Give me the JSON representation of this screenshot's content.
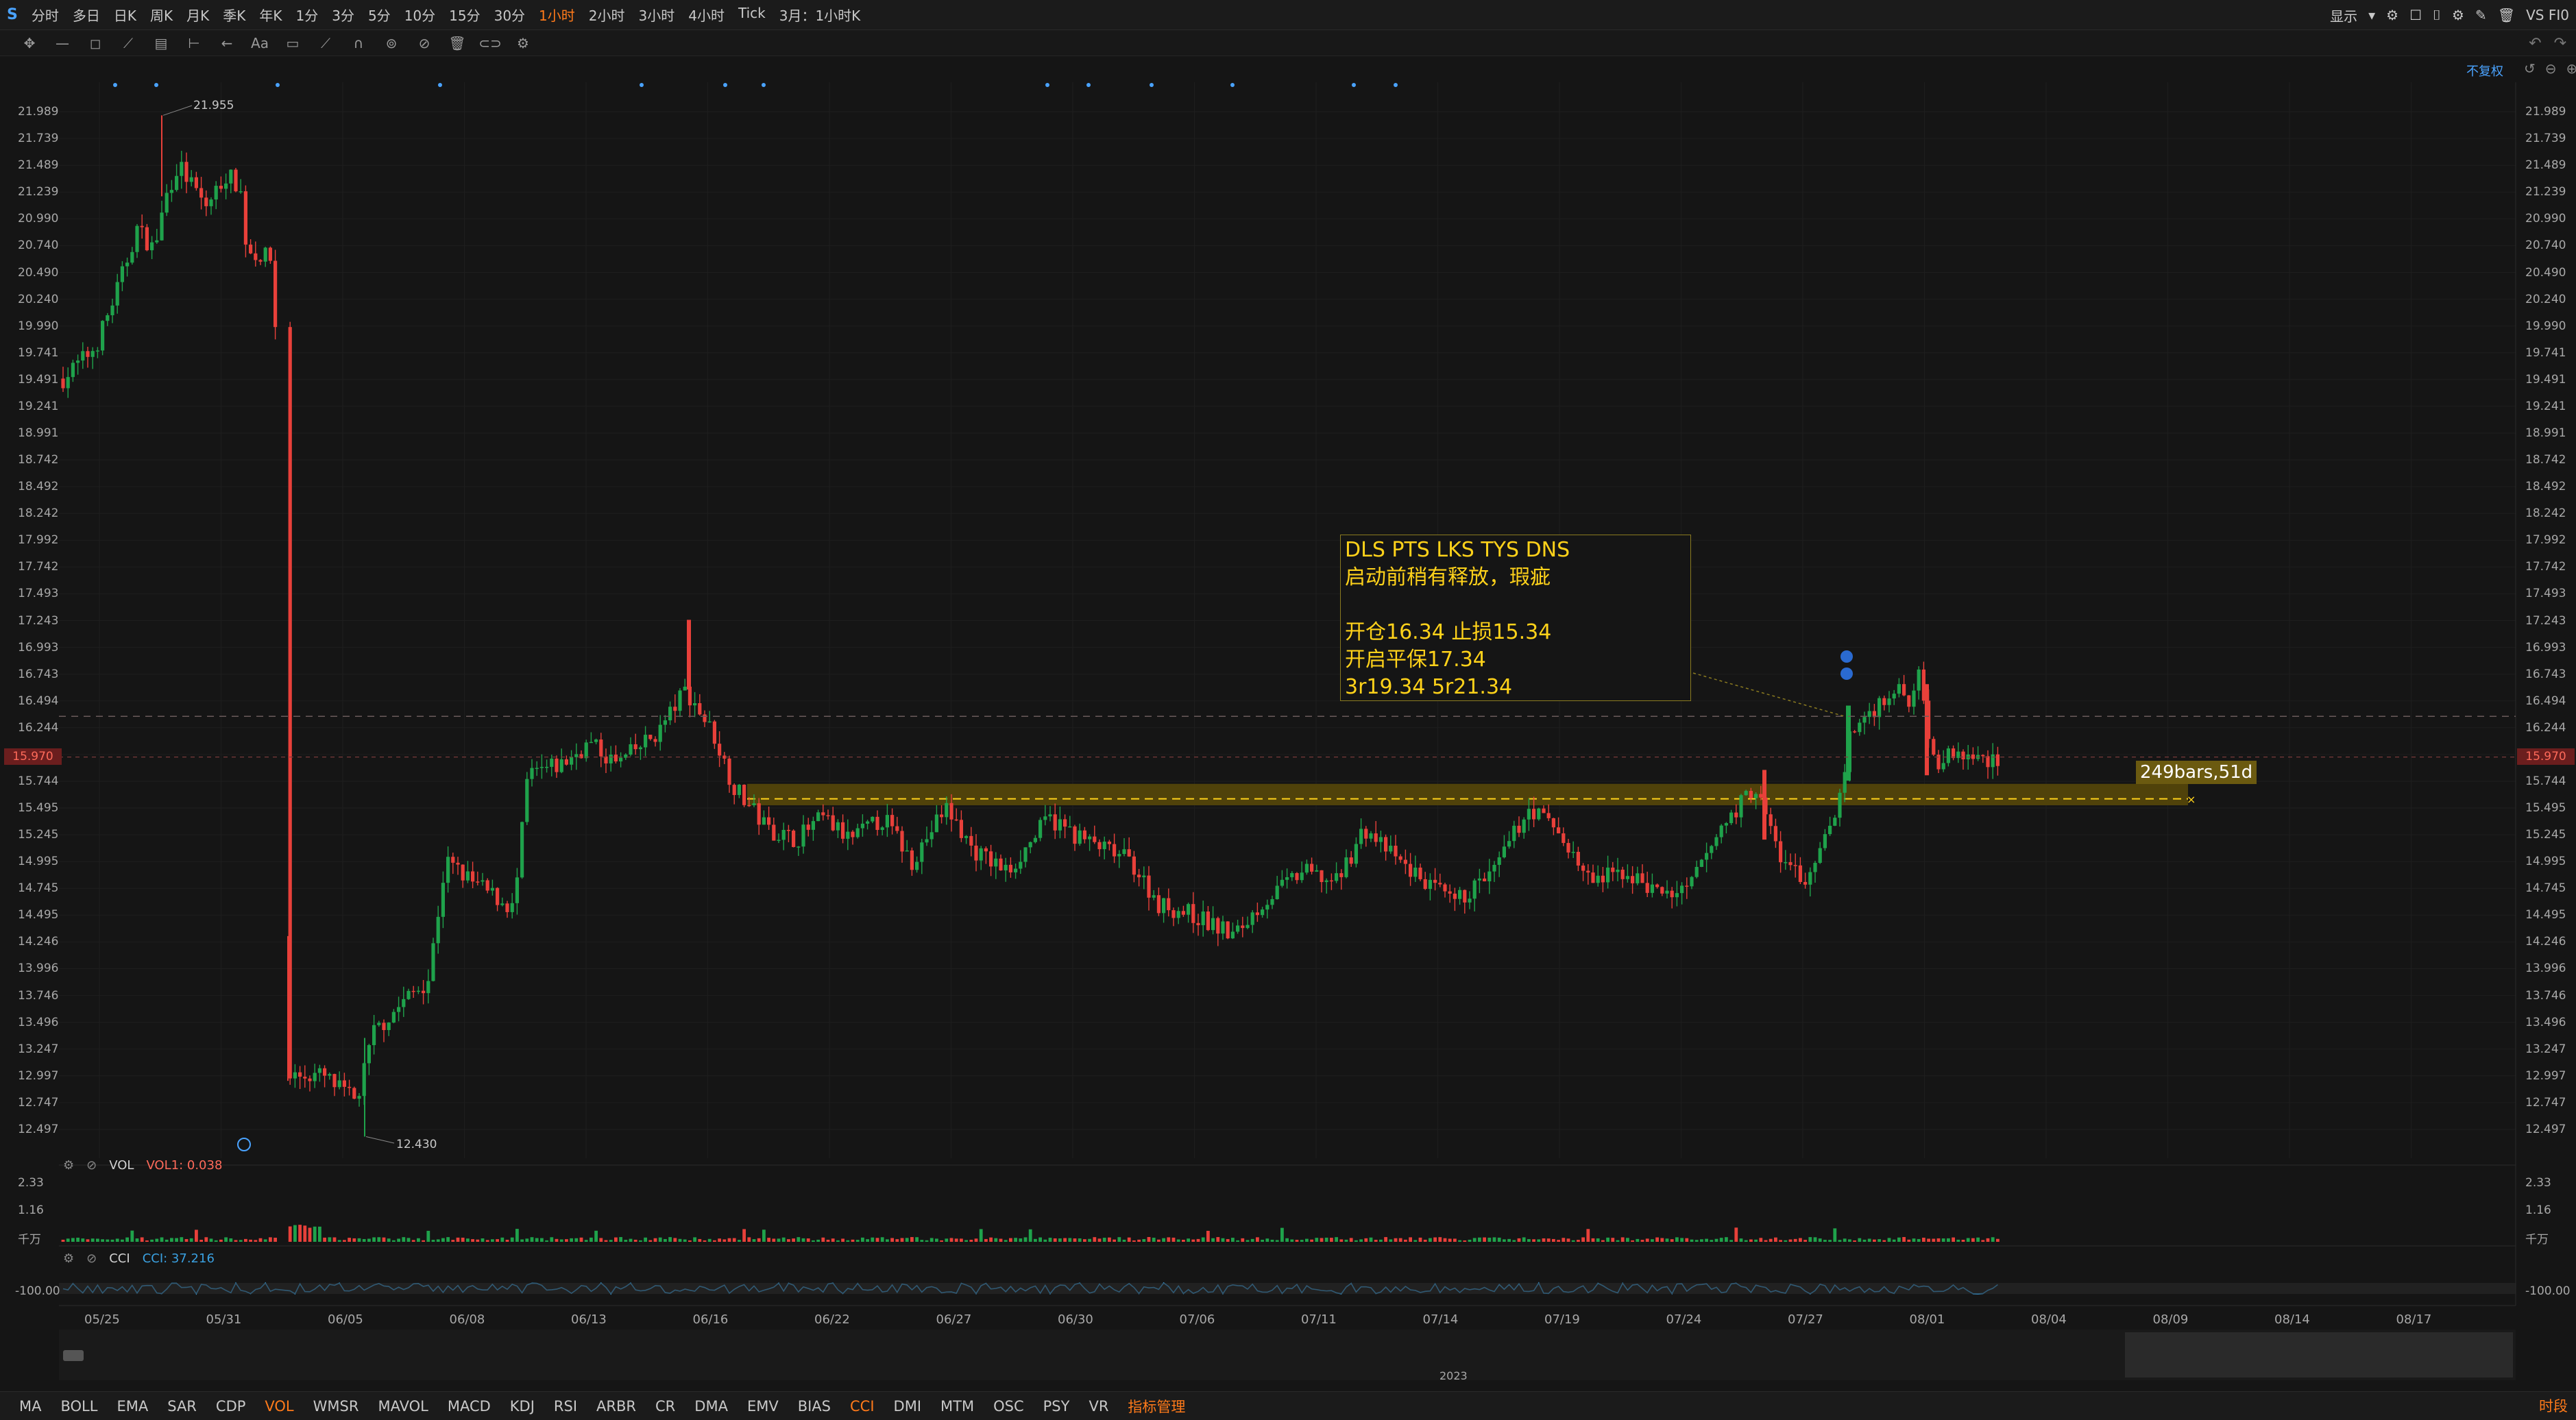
{
  "topbar": {
    "logo": "S",
    "periods": [
      "分时",
      "多日",
      "日K",
      "周K",
      "月K",
      "季K",
      "年K",
      "1分",
      "3分",
      "5分",
      "10分",
      "15分",
      "30分",
      "1小时",
      "2小时",
      "3小时",
      "4小时",
      "Tick",
      "3月：1小时K"
    ],
    "active_period": "1小时",
    "display_label": "显示",
    "symbol": "VS FI0"
  },
  "toolbar": {
    "fuquan_label": "不复权"
  },
  "annotation": {
    "line1": "DLS  PTS  LKS  TYS  DNS",
    "line2": "启动前稍有释放，瑕疵",
    "line3": "",
    "line4": "开仓16.34  止损15.34",
    "line5": "开启平保17.34",
    "line6": "3r19.34  5r21.34"
  },
  "range_label": "249bars,51d",
  "price_marks": {
    "high": "21.955",
    "low": "12.430",
    "current": "15.970"
  },
  "vol": {
    "name": "VOL",
    "value_label": "VOL1: 0.038",
    "ticks": [
      "2.33",
      "1.16",
      "千万"
    ]
  },
  "cci": {
    "name": "CCI",
    "value_label": "CCI: 37.216",
    "ticks": [
      "-100.00"
    ]
  },
  "nav_year": "2023",
  "bottom_tabs": [
    "MA",
    "BOLL",
    "EMA",
    "SAR",
    "CDP",
    "VOL",
    "WMSR",
    "MAVOL",
    "MACD",
    "KDJ",
    "RSI",
    "ARBR",
    "CR",
    "DMA",
    "EMV",
    "BIAS",
    "CCI",
    "DMI",
    "MTM",
    "OSC",
    "PSY",
    "VR",
    "指标管理"
  ],
  "bottom_active": [
    "VOL",
    "CCI"
  ],
  "time_label": "时段",
  "colors": {
    "up": "#1fa24b",
    "down": "#e8403a",
    "accent": "#ff7a1a",
    "note": "#ffd21a",
    "zone": "#c8a010",
    "cci_line": "#3aa0e0"
  },
  "chart_data": {
    "type": "candlestick",
    "ylim": [
      12.3,
      22.1
    ],
    "y_ticks": [
      "21.989",
      "21.739",
      "21.489",
      "21.239",
      "20.990",
      "20.740",
      "20.490",
      "20.240",
      "19.990",
      "19.741",
      "19.491",
      "19.241",
      "18.991",
      "18.742",
      "18.492",
      "18.242",
      "17.992",
      "17.742",
      "17.493",
      "17.243",
      "16.993",
      "16.743",
      "16.494",
      "16.244",
      "15.994",
      "15.744",
      "15.495",
      "15.245",
      "14.995",
      "14.745",
      "14.495",
      "14.246",
      "13.996",
      "13.746",
      "13.496",
      "13.247",
      "12.997",
      "12.747",
      "12.497"
    ],
    "x_ticks": [
      "05/25",
      "05/31",
      "06/05",
      "06/08",
      "06/13",
      "06/16",
      "06/22",
      "06/27",
      "06/30",
      "07/06",
      "07/11",
      "07/14",
      "07/19",
      "07/24",
      "07/27",
      "08/01",
      "08/04",
      "08/09",
      "08/14",
      "08/17"
    ],
    "zone": [
      15.52,
      15.72
    ],
    "levels": {
      "entry": 16.34,
      "stop": 15.34,
      "breakeven": 17.34,
      "r3": 19.34,
      "r5": 21.34,
      "dashed_top": 16.35,
      "zone_mid": 15.58
    }
  }
}
